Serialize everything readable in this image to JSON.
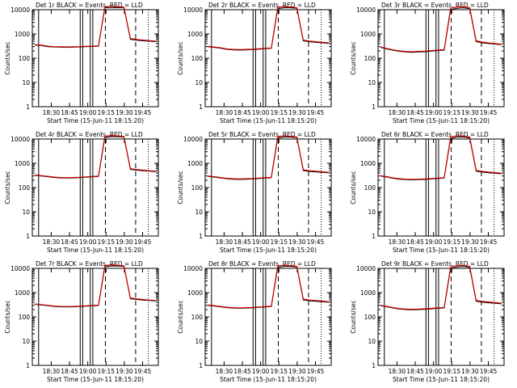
{
  "chart_data": [
    {
      "type": "line",
      "title": "Det 1r BLACK = Events, RED = LLD",
      "xlabel": "Start Time (15-Jun-11 18:15:20)",
      "ylabel": "Counts/sec",
      "xticks": [
        "18:30",
        "18:45",
        "19:00",
        "19:15",
        "19:30",
        "19:45"
      ],
      "yticks": [
        "1",
        "10",
        "100",
        "1000",
        "10000"
      ],
      "ylim": [
        1,
        10000
      ],
      "y_scale": "log",
      "series": [
        {
          "name": "Events",
          "color": "#000000",
          "values": [
            350,
            330,
            300,
            290,
            285,
            280,
            285,
            290,
            300,
            305,
            310,
            12000,
            12000,
            12000,
            12000,
            600,
            550,
            520,
            500,
            480
          ]
        },
        {
          "name": "LLD",
          "color": "#cc0000",
          "values": [
            360,
            345,
            315,
            300,
            295,
            290,
            295,
            300,
            310,
            315,
            320,
            13000,
            14000,
            13500,
            12500,
            650,
            590,
            560,
            530,
            500
          ]
        }
      ]
    },
    {
      "type": "line",
      "title": "Det 2r BLACK = Events, RED = LLD",
      "xlabel": "Start Time (15-Jun-11 18:15:20)",
      "ylabel": "Counts/sec",
      "xticks": [
        "18:30",
        "18:45",
        "19:00",
        "19:15",
        "19:30",
        "19:45"
      ],
      "yticks": [
        "1",
        "10",
        "100",
        "1000",
        "10000"
      ],
      "ylim": [
        1,
        10000
      ],
      "y_scale": "log",
      "series": [
        {
          "name": "Events",
          "color": "#000000",
          "values": [
            300,
            280,
            260,
            230,
            220,
            215,
            220,
            225,
            235,
            245,
            255,
            11000,
            12000,
            12000,
            11500,
            520,
            480,
            450,
            430,
            410
          ]
        },
        {
          "name": "LLD",
          "color": "#cc0000",
          "values": [
            310,
            290,
            270,
            240,
            230,
            225,
            230,
            235,
            245,
            255,
            265,
            12500,
            13500,
            13000,
            12000,
            560,
            510,
            480,
            455,
            430
          ]
        }
      ]
    },
    {
      "type": "line",
      "title": "Det 3r BLACK = Events, RED = LLD",
      "xlabel": "Start Time (15-Jun-11 18:15:20)",
      "ylabel": "Counts/sec",
      "xticks": [
        "18:30",
        "18:45",
        "19:00",
        "19:15",
        "19:30",
        "19:45"
      ],
      "yticks": [
        "1",
        "10",
        "100",
        "1000",
        "10000"
      ],
      "ylim": [
        1,
        10000
      ],
      "y_scale": "log",
      "series": [
        {
          "name": "Events",
          "color": "#000000",
          "values": [
            280,
            240,
            210,
            190,
            180,
            175,
            180,
            185,
            195,
            205,
            215,
            10000,
            11500,
            12000,
            11000,
            480,
            430,
            400,
            380,
            360
          ]
        },
        {
          "name": "LLD",
          "color": "#cc0000",
          "values": [
            290,
            250,
            220,
            200,
            190,
            185,
            190,
            195,
            205,
            215,
            225,
            11500,
            13000,
            13500,
            12000,
            520,
            460,
            425,
            400,
            375
          ]
        }
      ]
    },
    {
      "type": "line",
      "title": "Det 4r BLACK = Events, RED = LLD",
      "xlabel": "Start Time (15-Jun-11 18:15:20)",
      "ylabel": "Counts/sec",
      "xticks": [
        "18:30",
        "18:45",
        "19:00",
        "19:15",
        "19:30",
        "19:45"
      ],
      "yticks": [
        "1",
        "10",
        "100",
        "1000",
        "10000"
      ],
      "ylim": [
        1,
        10000
      ],
      "y_scale": "log",
      "series": [
        {
          "name": "Events",
          "color": "#000000",
          "values": [
            320,
            300,
            280,
            260,
            250,
            245,
            250,
            255,
            265,
            275,
            285,
            11500,
            12500,
            12500,
            12000,
            560,
            520,
            490,
            470,
            450
          ]
        },
        {
          "name": "LLD",
          "color": "#cc0000",
          "values": [
            330,
            310,
            290,
            270,
            260,
            255,
            260,
            265,
            275,
            285,
            295,
            13000,
            14000,
            13500,
            12500,
            600,
            555,
            520,
            495,
            470
          ]
        }
      ]
    },
    {
      "type": "line",
      "title": "Det 5r BLACK = Events, RED = LLD",
      "xlabel": "Start Time (15-Jun-11 18:15:20)",
      "ylabel": "Counts/sec",
      "xticks": [
        "18:30",
        "18:45",
        "19:00",
        "19:15",
        "19:30",
        "19:45"
      ],
      "yticks": [
        "1",
        "10",
        "100",
        "1000",
        "10000"
      ],
      "ylim": [
        1,
        10000
      ],
      "y_scale": "log",
      "series": [
        {
          "name": "Events",
          "color": "#000000",
          "values": [
            290,
            270,
            250,
            230,
            220,
            215,
            220,
            225,
            235,
            245,
            255,
            11000,
            12000,
            12000,
            11500,
            500,
            460,
            440,
            420,
            400
          ]
        },
        {
          "name": "LLD",
          "color": "#cc0000",
          "values": [
            300,
            280,
            260,
            240,
            230,
            225,
            230,
            235,
            245,
            255,
            265,
            12500,
            13500,
            13000,
            12000,
            540,
            495,
            470,
            445,
            420
          ]
        }
      ]
    },
    {
      "type": "line",
      "title": "Det 6r BLACK = Events, RED = LLD",
      "xlabel": "Start Time (15-Jun-11 18:15:20)",
      "ylabel": "Counts/sec",
      "xticks": [
        "18:30",
        "18:45",
        "19:00",
        "19:15",
        "19:30",
        "19:45"
      ],
      "yticks": [
        "1",
        "10",
        "100",
        "1000",
        "10000"
      ],
      "ylim": [
        1,
        10000
      ],
      "y_scale": "log",
      "series": [
        {
          "name": "Events",
          "color": "#000000",
          "values": [
            300,
            270,
            240,
            220,
            210,
            205,
            210,
            215,
            225,
            235,
            245,
            10500,
            12000,
            12000,
            11000,
            470,
            430,
            405,
            385,
            370
          ]
        },
        {
          "name": "LLD",
          "color": "#cc0000",
          "values": [
            310,
            280,
            250,
            230,
            220,
            215,
            220,
            225,
            235,
            245,
            255,
            12000,
            13500,
            13500,
            12000,
            510,
            465,
            435,
            410,
            390
          ]
        }
      ]
    },
    {
      "type": "line",
      "title": "Det 7r BLACK = Events, RED = LLD",
      "xlabel": "Start Time (15-Jun-11 18:15:20)",
      "ylabel": "Counts/sec",
      "xticks": [
        "18:30",
        "18:45",
        "19:00",
        "19:15",
        "19:30",
        "19:45"
      ],
      "yticks": [
        "1",
        "10",
        "100",
        "1000",
        "10000"
      ],
      "ylim": [
        1,
        10000
      ],
      "y_scale": "log",
      "series": [
        {
          "name": "Events",
          "color": "#000000",
          "values": [
            330,
            310,
            290,
            270,
            260,
            255,
            260,
            265,
            275,
            285,
            295,
            11500,
            12500,
            12500,
            12000,
            560,
            520,
            490,
            470,
            450
          ]
        },
        {
          "name": "LLD",
          "color": "#cc0000",
          "values": [
            340,
            320,
            300,
            280,
            270,
            265,
            270,
            275,
            285,
            295,
            305,
            13000,
            14000,
            13500,
            12500,
            600,
            555,
            520,
            495,
            470
          ]
        }
      ]
    },
    {
      "type": "line",
      "title": "Det 8r BLACK = Events, RED = LLD",
      "xlabel": "Start Time (15-Jun-11 18:15:20)",
      "ylabel": "Counts/sec",
      "xticks": [
        "18:30",
        "18:45",
        "19:00",
        "19:15",
        "19:30",
        "19:45"
      ],
      "yticks": [
        "1",
        "10",
        "100",
        "1000",
        "10000"
      ],
      "ylim": [
        1,
        10000
      ],
      "y_scale": "log",
      "series": [
        {
          "name": "Events",
          "color": "#000000",
          "values": [
            300,
            280,
            260,
            240,
            230,
            225,
            230,
            235,
            245,
            255,
            265,
            11000,
            12000,
            12000,
            11500,
            500,
            460,
            440,
            420,
            400
          ]
        },
        {
          "name": "LLD",
          "color": "#cc0000",
          "values": [
            310,
            290,
            270,
            250,
            240,
            235,
            240,
            245,
            255,
            265,
            275,
            12500,
            13500,
            13000,
            12000,
            540,
            495,
            470,
            445,
            420
          ]
        }
      ]
    },
    {
      "type": "line",
      "title": "Det 9r BLACK = Events, RED = LLD",
      "xlabel": "Start Time (15-Jun-11 18:15:20)",
      "ylabel": "Counts/sec",
      "xticks": [
        "18:30",
        "18:45",
        "19:00",
        "19:15",
        "19:30",
        "19:45"
      ],
      "yticks": [
        "1",
        "10",
        "100",
        "1000",
        "10000"
      ],
      "ylim": [
        1,
        10000
      ],
      "y_scale": "log",
      "series": [
        {
          "name": "Events",
          "color": "#000000",
          "values": [
            290,
            260,
            230,
            210,
            200,
            195,
            200,
            205,
            215,
            225,
            235,
            10000,
            11500,
            12000,
            11000,
            440,
            400,
            380,
            360,
            345
          ]
        },
        {
          "name": "LLD",
          "color": "#cc0000",
          "values": [
            300,
            270,
            240,
            220,
            210,
            205,
            210,
            215,
            225,
            235,
            245,
            11500,
            13000,
            13500,
            12000,
            480,
            435,
            410,
            385,
            365
          ]
        }
      ]
    }
  ]
}
